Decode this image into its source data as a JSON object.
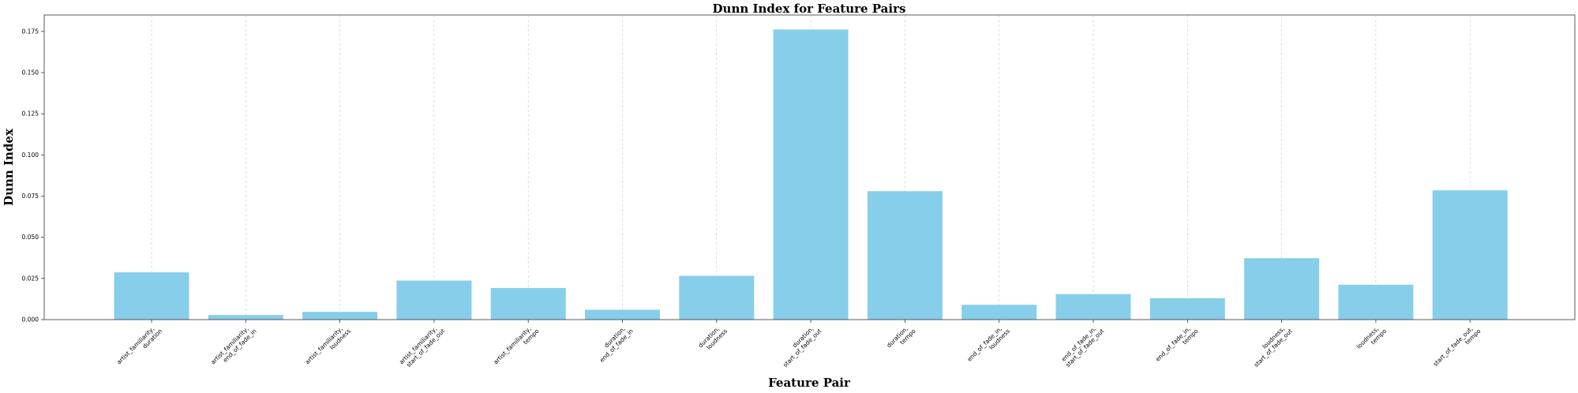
{
  "chart_data": {
    "type": "bar",
    "title": "Dunn Index for Feature Pairs",
    "xlabel": "Feature Pair",
    "ylabel": "Dunn Index",
    "ylim": [
      0,
      0.185
    ],
    "yticks": [
      "0.000",
      "0.025",
      "0.050",
      "0.075",
      "0.100",
      "0.125",
      "0.150",
      "0.175"
    ],
    "grid": "vertical dashed",
    "bar_color": "#87CEEB",
    "categories": [
      [
        "artist_familiarity,",
        "duration"
      ],
      [
        "artist_familiarity,",
        "end_of_fade_in"
      ],
      [
        "artist_familiarity,",
        "loudness"
      ],
      [
        "artist_familiarity,",
        "start_of_fade_out"
      ],
      [
        "artist_familiarity,",
        "tempo"
      ],
      [
        "duration,",
        "end_of_fade_in"
      ],
      [
        "duration,",
        "loudness"
      ],
      [
        "duration,",
        "start_of_fade_out"
      ],
      [
        "duration,",
        "tempo"
      ],
      [
        "end_of_fade_in,",
        "loudness"
      ],
      [
        "end_of_fade_in,",
        "start_of_fade_out"
      ],
      [
        "end_of_fade_in,",
        "tempo"
      ],
      [
        "loudness,",
        "start_of_fade_out"
      ],
      [
        "loudness,",
        "tempo"
      ],
      [
        "start_of_fade_out,",
        "tempo"
      ]
    ],
    "values": [
      0.0287,
      0.0028,
      0.0047,
      0.0237,
      0.0192,
      0.006,
      0.0266,
      0.1762,
      0.078,
      0.009,
      0.0155,
      0.013,
      0.0373,
      0.0212,
      0.0785
    ]
  }
}
